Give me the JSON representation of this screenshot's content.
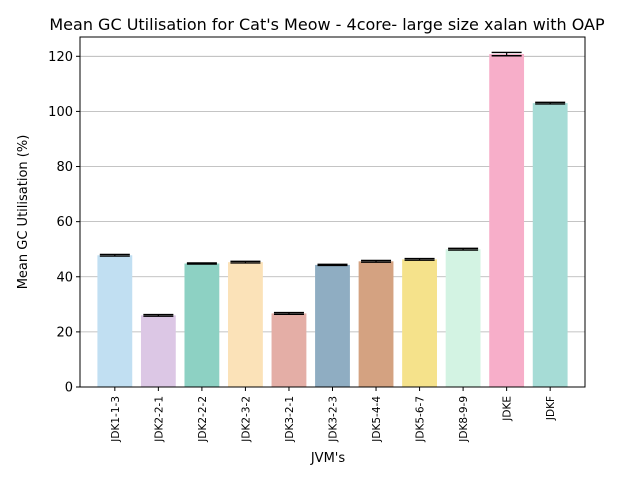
{
  "chart_data": {
    "type": "bar",
    "title": "Mean GC Utilisation for Cat's Meow - 4core- large size xalan with OAP",
    "xlabel": "JVM's",
    "ylabel": "Mean GC Utilisation (%)",
    "ylim": [
      0,
      127
    ],
    "yticks": [
      0,
      20,
      40,
      60,
      80,
      100,
      120
    ],
    "grid": "horizontal",
    "categories": [
      "JDK1-1-3",
      "JDK2-2-1",
      "JDK2-2-2",
      "JDK2-3-2",
      "JDK3-2-1",
      "JDK3-2-3",
      "JDK5-4-4",
      "JDK5-6-7",
      "JDK8-9-9",
      "JDKE",
      "JDKF"
    ],
    "values": [
      47.8,
      26.0,
      44.8,
      45.3,
      26.7,
      44.3,
      45.6,
      46.3,
      50.0,
      120.8,
      103.0
    ],
    "errors": [
      0.3,
      0.3,
      0.2,
      0.3,
      0.3,
      0.2,
      0.3,
      0.3,
      0.3,
      0.6,
      0.3
    ],
    "colors": [
      "#c1dff2",
      "#dcc7e5",
      "#8dd1c3",
      "#fbe2b8",
      "#e4aea6",
      "#8fadc2",
      "#d4a281",
      "#f5e28b",
      "#d3f3e3",
      "#f7aec9",
      "#a6dcd6"
    ]
  }
}
